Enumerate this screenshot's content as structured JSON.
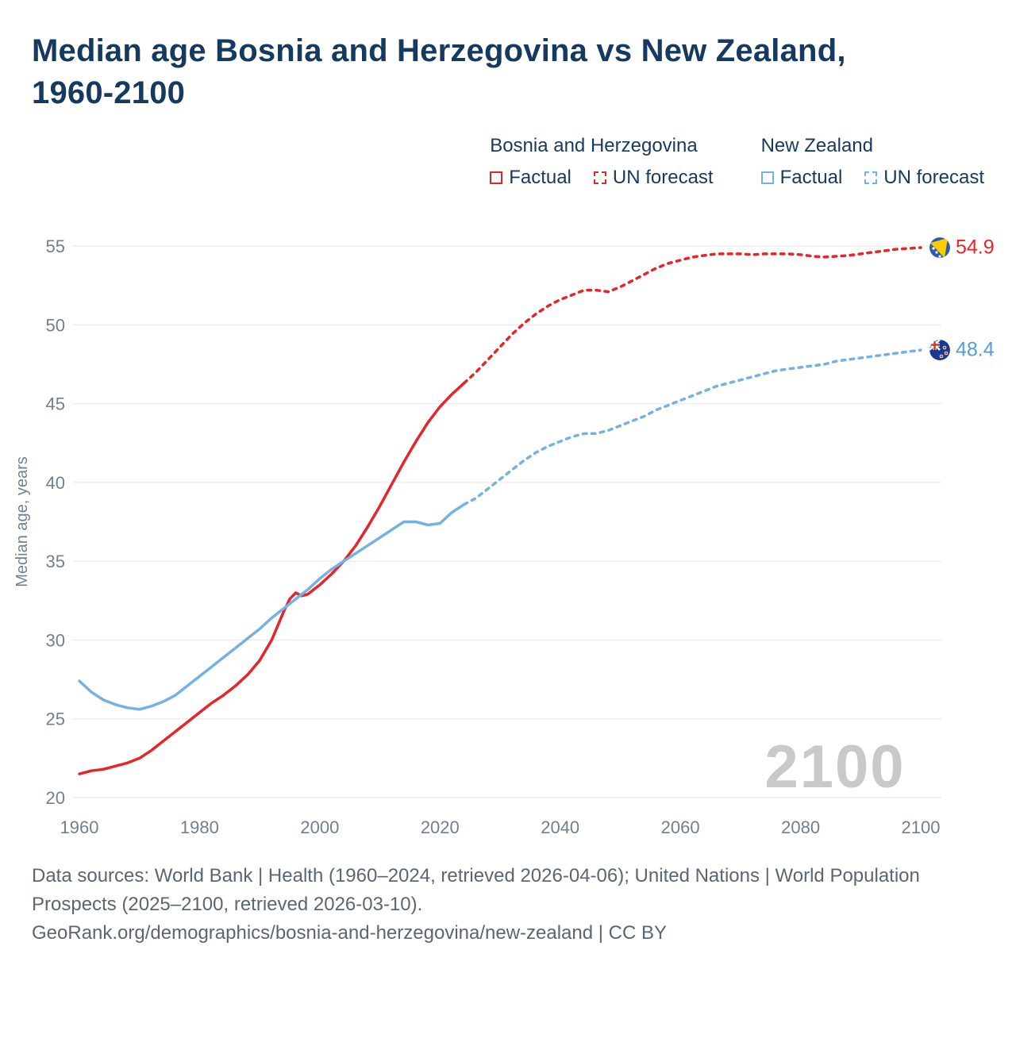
{
  "title": "Median age Bosnia and Herzegovina vs New Zealand, 1960-2100",
  "watermark": "2100",
  "colors": {
    "bosnia": "#e8242b",
    "nz": "#74b2e4",
    "title_navy": "#163a5f",
    "axis_gray": "#72808d",
    "grid": "#e6e6e6",
    "watermark": "#c9c9c9",
    "footer_gray": "#5b6670"
  },
  "legend": {
    "groups": [
      {
        "name": "Bosnia and Herzegovina",
        "factual": "Factual",
        "forecast": "UN forecast"
      },
      {
        "name": "New Zealand",
        "factual": "Factual",
        "forecast": "UN forecast"
      }
    ]
  },
  "end_labels": {
    "bosnia": "54.9",
    "nz": "48.4"
  },
  "footer": {
    "line1": "Data sources: World Bank | Health (1960–2024, retrieved 2026-04-06); United Nations | World Population Prospects (2025–2100, retrieved 2026-03-10).",
    "line2": "GeoRank.org/demographics/bosnia-and-herzegovina/new-zealand | CC BY"
  },
  "chart_data": {
    "type": "line",
    "title": "Median age Bosnia and Herzegovina vs New Zealand, 1960-2100",
    "xlabel": "",
    "ylabel": "Median age, years",
    "xlim": [
      1960,
      2100
    ],
    "ylim": [
      20,
      55
    ],
    "xticks": [
      1960,
      1980,
      2000,
      2020,
      2040,
      2060,
      2080,
      2100
    ],
    "yticks": [
      20,
      25,
      30,
      35,
      40,
      45,
      50,
      55
    ],
    "grid": "horizontal",
    "legend_position": "top-right",
    "series": [
      {
        "id": "bosnia-factual",
        "name": "Bosnia and Herzegovina — Factual",
        "color": "#e8242b",
        "style": "solid",
        "points": [
          [
            1960,
            21.5
          ],
          [
            1962,
            21.7
          ],
          [
            1964,
            21.8
          ],
          [
            1966,
            22.0
          ],
          [
            1968,
            22.2
          ],
          [
            1970,
            22.5
          ],
          [
            1972,
            23.0
          ],
          [
            1974,
            23.6
          ],
          [
            1976,
            24.2
          ],
          [
            1978,
            24.8
          ],
          [
            1980,
            25.4
          ],
          [
            1982,
            26.0
          ],
          [
            1984,
            26.5
          ],
          [
            1986,
            27.1
          ],
          [
            1988,
            27.8
          ],
          [
            1990,
            28.7
          ],
          [
            1992,
            30.0
          ],
          [
            1994,
            31.8
          ],
          [
            1995,
            32.6
          ],
          [
            1996,
            33.0
          ],
          [
            1997,
            32.8
          ],
          [
            1998,
            32.9
          ],
          [
            2000,
            33.5
          ],
          [
            2002,
            34.2
          ],
          [
            2004,
            35.0
          ],
          [
            2006,
            36.0
          ],
          [
            2008,
            37.2
          ],
          [
            2010,
            38.5
          ],
          [
            2012,
            39.9
          ],
          [
            2014,
            41.3
          ],
          [
            2016,
            42.6
          ],
          [
            2018,
            43.8
          ],
          [
            2020,
            44.8
          ],
          [
            2022,
            45.6
          ],
          [
            2024,
            46.3
          ]
        ]
      },
      {
        "id": "bosnia-forecast",
        "name": "Bosnia and Herzegovina — UN forecast",
        "color": "#e8242b",
        "style": "dashed",
        "points": [
          [
            2024,
            46.3
          ],
          [
            2026,
            47.0
          ],
          [
            2028,
            47.8
          ],
          [
            2030,
            48.6
          ],
          [
            2032,
            49.4
          ],
          [
            2034,
            50.1
          ],
          [
            2036,
            50.7
          ],
          [
            2038,
            51.2
          ],
          [
            2040,
            51.6
          ],
          [
            2042,
            51.9
          ],
          [
            2044,
            52.2
          ],
          [
            2046,
            52.2
          ],
          [
            2048,
            52.1
          ],
          [
            2050,
            52.4
          ],
          [
            2052,
            52.8
          ],
          [
            2054,
            53.2
          ],
          [
            2056,
            53.6
          ],
          [
            2058,
            53.9
          ],
          [
            2060,
            54.1
          ],
          [
            2062,
            54.3
          ],
          [
            2064,
            54.4
          ],
          [
            2066,
            54.5
          ],
          [
            2068,
            54.5
          ],
          [
            2070,
            54.5
          ],
          [
            2072,
            54.45
          ],
          [
            2074,
            54.5
          ],
          [
            2076,
            54.5
          ],
          [
            2078,
            54.5
          ],
          [
            2080,
            54.45
          ],
          [
            2082,
            54.35
          ],
          [
            2084,
            54.3
          ],
          [
            2086,
            54.35
          ],
          [
            2088,
            54.4
          ],
          [
            2090,
            54.5
          ],
          [
            2092,
            54.6
          ],
          [
            2094,
            54.7
          ],
          [
            2096,
            54.8
          ],
          [
            2098,
            54.85
          ],
          [
            2100,
            54.9
          ]
        ]
      },
      {
        "id": "nz-factual",
        "name": "New Zealand — Factual",
        "color": "#74b2e4",
        "style": "solid",
        "points": [
          [
            1960,
            27.4
          ],
          [
            1962,
            26.7
          ],
          [
            1964,
            26.2
          ],
          [
            1966,
            25.9
          ],
          [
            1968,
            25.7
          ],
          [
            1970,
            25.6
          ],
          [
            1972,
            25.8
          ],
          [
            1974,
            26.1
          ],
          [
            1976,
            26.5
          ],
          [
            1978,
            27.1
          ],
          [
            1980,
            27.7
          ],
          [
            1982,
            28.3
          ],
          [
            1984,
            28.9
          ],
          [
            1986,
            29.5
          ],
          [
            1988,
            30.1
          ],
          [
            1990,
            30.7
          ],
          [
            1992,
            31.4
          ],
          [
            1994,
            32.0
          ],
          [
            1996,
            32.6
          ],
          [
            1998,
            33.2
          ],
          [
            2000,
            33.9
          ],
          [
            2002,
            34.5
          ],
          [
            2004,
            35.0
          ],
          [
            2006,
            35.5
          ],
          [
            2008,
            36.0
          ],
          [
            2010,
            36.5
          ],
          [
            2012,
            37.0
          ],
          [
            2014,
            37.5
          ],
          [
            2016,
            37.5
          ],
          [
            2018,
            37.3
          ],
          [
            2020,
            37.4
          ],
          [
            2022,
            38.1
          ],
          [
            2024,
            38.6
          ]
        ]
      },
      {
        "id": "nz-forecast",
        "name": "New Zealand — UN forecast",
        "color": "#74b2e4",
        "style": "dashed",
        "points": [
          [
            2024,
            38.6
          ],
          [
            2026,
            39.0
          ],
          [
            2028,
            39.6
          ],
          [
            2030,
            40.2
          ],
          [
            2032,
            40.8
          ],
          [
            2034,
            41.4
          ],
          [
            2036,
            41.9
          ],
          [
            2038,
            42.3
          ],
          [
            2040,
            42.6
          ],
          [
            2042,
            42.9
          ],
          [
            2044,
            43.1
          ],
          [
            2046,
            43.1
          ],
          [
            2048,
            43.3
          ],
          [
            2050,
            43.6
          ],
          [
            2052,
            43.9
          ],
          [
            2054,
            44.2
          ],
          [
            2056,
            44.6
          ],
          [
            2058,
            44.9
          ],
          [
            2060,
            45.2
          ],
          [
            2062,
            45.5
          ],
          [
            2064,
            45.8
          ],
          [
            2066,
            46.1
          ],
          [
            2068,
            46.3
          ],
          [
            2070,
            46.5
          ],
          [
            2072,
            46.7
          ],
          [
            2074,
            46.9
          ],
          [
            2076,
            47.1
          ],
          [
            2078,
            47.2
          ],
          [
            2080,
            47.3
          ],
          [
            2082,
            47.4
          ],
          [
            2084,
            47.5
          ],
          [
            2086,
            47.7
          ],
          [
            2088,
            47.8
          ],
          [
            2090,
            47.9
          ],
          [
            2092,
            48.0
          ],
          [
            2094,
            48.1
          ],
          [
            2096,
            48.2
          ],
          [
            2098,
            48.3
          ],
          [
            2100,
            48.4
          ]
        ]
      }
    ]
  }
}
